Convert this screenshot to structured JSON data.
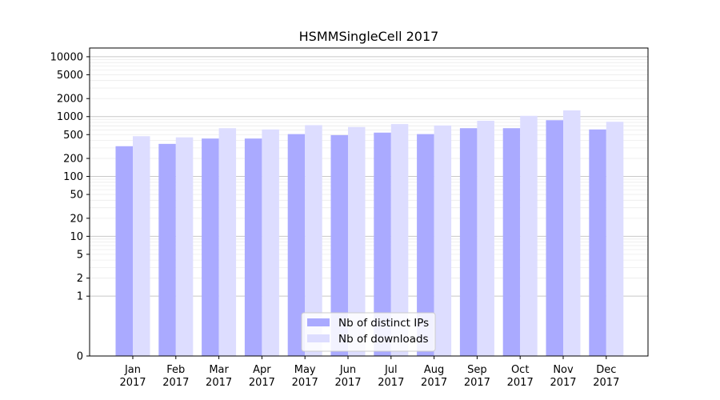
{
  "chart_data": {
    "type": "bar",
    "title": "HSMMSingleCell 2017",
    "xlabel": "",
    "ylabel": "",
    "yscale": "symlog",
    "ylim": [
      0,
      14000
    ],
    "yticks": [
      {
        "value": 0,
        "label": "0"
      },
      {
        "value": 1,
        "label": "1"
      },
      {
        "value": 2,
        "label": "2"
      },
      {
        "value": 5,
        "label": "5"
      },
      {
        "value": 10,
        "label": "10"
      },
      {
        "value": 20,
        "label": "20"
      },
      {
        "value": 50,
        "label": "50"
      },
      {
        "value": 100,
        "label": "100"
      },
      {
        "value": 200,
        "label": "200"
      },
      {
        "value": 500,
        "label": "500"
      },
      {
        "value": 1000,
        "label": "1000"
      },
      {
        "value": 2000,
        "label": "2000"
      },
      {
        "value": 5000,
        "label": "5000"
      },
      {
        "value": 10000,
        "label": "10000"
      }
    ],
    "categories": [
      {
        "month": "Jan",
        "year": "2017"
      },
      {
        "month": "Feb",
        "year": "2017"
      },
      {
        "month": "Mar",
        "year": "2017"
      },
      {
        "month": "Apr",
        "year": "2017"
      },
      {
        "month": "May",
        "year": "2017"
      },
      {
        "month": "Jun",
        "year": "2017"
      },
      {
        "month": "Jul",
        "year": "2017"
      },
      {
        "month": "Aug",
        "year": "2017"
      },
      {
        "month": "Sep",
        "year": "2017"
      },
      {
        "month": "Oct",
        "year": "2017"
      },
      {
        "month": "Nov",
        "year": "2017"
      },
      {
        "month": "Dec",
        "year": "2017"
      }
    ],
    "series": [
      {
        "name": "Nb of distinct IPs",
        "color": "#aaaaff",
        "values": [
          320,
          350,
          430,
          430,
          510,
          490,
          540,
          510,
          640,
          640,
          870,
          610
        ]
      },
      {
        "name": "Nb of downloads",
        "color": "#ddddff",
        "values": [
          470,
          450,
          640,
          610,
          720,
          670,
          750,
          710,
          850,
          1030,
          1270,
          820
        ]
      }
    ],
    "grid": true,
    "legend_position": "lower-center"
  }
}
